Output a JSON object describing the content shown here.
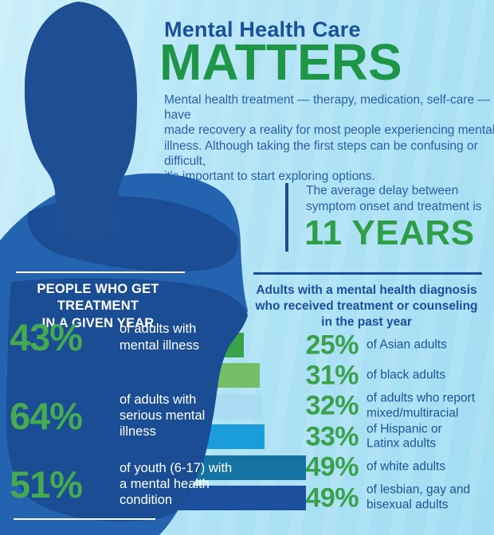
{
  "title": {
    "kicker": "Mental Health Care",
    "headline": "MATTERS",
    "intro": "Mental health treatment — therapy, medication, self-care — have\nmade recovery a reality for most people experiencing mental\nillness. Although taking the first steps can be confusing or difficult,\nit's important to start exploring options."
  },
  "delay_callout": {
    "lead": "The average delay between\nsymptom onset and treatment is",
    "value": "11 YEARS"
  },
  "left_panel": {
    "heading": "PEOPLE WHO GET TREATMENT\nIN A GIVEN YEAR",
    "rows": [
      {
        "percent": "43%",
        "label": "of adults with\nmental illness"
      },
      {
        "percent": "64%",
        "label": "of adults with\nserious mental\nillness"
      },
      {
        "percent": "51%",
        "label": "of youth (6-17) with\na mental health\ncondition"
      }
    ]
  },
  "right_panel": {
    "heading": "Adults with a mental health diagnosis\nwho received treatment or counseling\nin the past year",
    "rows": [
      {
        "percent": "25%",
        "label": "of Asian adults"
      },
      {
        "percent": "31%",
        "label": "of black adults"
      },
      {
        "percent": "32%",
        "label": "of adults who report\nmixed/multiracial"
      },
      {
        "percent": "33%",
        "label": "of Hispanic or\nLatinx adults"
      },
      {
        "percent": "49%",
        "label": "of white adults"
      },
      {
        "percent": "49%",
        "label": "of lesbian, gay and\nbisexual adults"
      }
    ]
  },
  "chart_data": {
    "type": "bar",
    "orientation": "horizontal",
    "title": "Adults with a mental health diagnosis who received treatment or counseling in the past year",
    "categories": [
      "Asian adults",
      "black adults",
      "adults who report mixed/multiracial",
      "Hispanic or Latinx adults",
      "white adults",
      "lesbian, gay and bisexual adults"
    ],
    "values": [
      25,
      31,
      32,
      33,
      49,
      49
    ],
    "unit": "%",
    "xlim": [
      0,
      100
    ],
    "grid": false,
    "legend": "none",
    "bar_colors": [
      "#3aa34a",
      "#76bd67",
      "#a9dcf3",
      "#1b9dd9",
      "#1473a3",
      "#1c4f9e"
    ],
    "data_labels": [
      "25%",
      "31%",
      "32%",
      "33%",
      "49%",
      "49%"
    ]
  },
  "palette": {
    "background_light_blue": "#b3e4f6",
    "title_blue": "#1a5096",
    "body_text_blue": "#2a5fa8",
    "headline_green": "#1e9547",
    "percent_green": "#3aa04b",
    "silhouette_base": "#2463b0",
    "silhouette_dark": "#1b4d94",
    "white": "#ffffff"
  },
  "figure": {
    "icon": "person-silhouette"
  }
}
